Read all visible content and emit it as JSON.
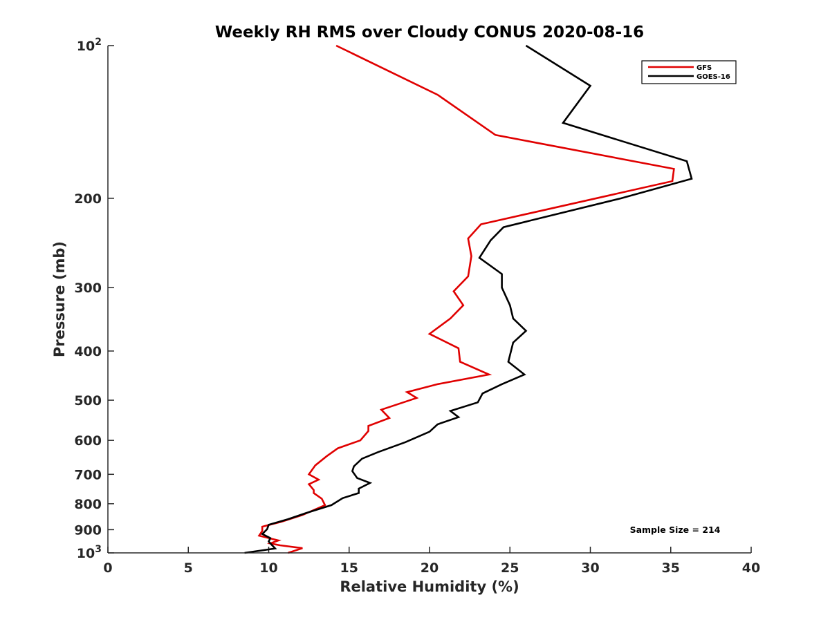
{
  "chart_data": {
    "type": "line",
    "title": "Weekly RH RMS over Cloudy CONUS 2020-08-16",
    "xlabel": "Relative Humidity (%)",
    "ylabel": "Pressure (mb)",
    "xlim": [
      0,
      40
    ],
    "ylim": [
      1000,
      100
    ],
    "y_scale": "log",
    "y_reversed": true,
    "xticks": [
      0,
      5,
      10,
      15,
      20,
      25,
      30,
      35,
      40
    ],
    "xtick_labels": [
      "0",
      "5",
      "10",
      "15",
      "20",
      "25",
      "30",
      "35",
      "40"
    ],
    "yticks": [
      {
        "value": 100,
        "base": "10",
        "exp": "2"
      },
      {
        "value": 200,
        "label": "200"
      },
      {
        "value": 300,
        "label": "300"
      },
      {
        "value": 400,
        "label": "400"
      },
      {
        "value": 500,
        "label": "500"
      },
      {
        "value": 600,
        "label": "600"
      },
      {
        "value": 700,
        "label": "700"
      },
      {
        "value": 800,
        "label": "800"
      },
      {
        "value": 900,
        "label": "900"
      },
      {
        "value": 1000,
        "base": "10",
        "exp": "3"
      }
    ],
    "grid": false,
    "legend_position": "top-right",
    "series": [
      {
        "name": "GFS",
        "color": "#e00000",
        "points": [
          [
            14.2,
            100
          ],
          [
            20.5,
            125
          ],
          [
            24.1,
            150
          ],
          [
            35.2,
            175
          ],
          [
            35.1,
            185
          ],
          [
            23.2,
            225
          ],
          [
            22.4,
            240
          ],
          [
            22.6,
            260
          ],
          [
            22.4,
            285
          ],
          [
            21.5,
            305
          ],
          [
            22.1,
            325
          ],
          [
            21.3,
            345
          ],
          [
            20.0,
            370
          ],
          [
            21.8,
            395
          ],
          [
            21.9,
            420
          ],
          [
            23.7,
            445
          ],
          [
            20.5,
            465
          ],
          [
            18.6,
            482
          ],
          [
            19.2,
            495
          ],
          [
            17.0,
            522
          ],
          [
            17.5,
            542
          ],
          [
            16.2,
            562
          ],
          [
            16.2,
            575
          ],
          [
            15.7,
            600
          ],
          [
            14.3,
            622
          ],
          [
            13.6,
            645
          ],
          [
            12.9,
            672
          ],
          [
            12.5,
            700
          ],
          [
            13.1,
            717
          ],
          [
            12.5,
            732
          ],
          [
            12.8,
            752
          ],
          [
            12.8,
            762
          ],
          [
            13.3,
            782
          ],
          [
            13.5,
            805
          ],
          [
            12.1,
            842
          ],
          [
            10.8,
            868
          ],
          [
            9.6,
            888
          ],
          [
            9.6,
            905
          ],
          [
            9.4,
            925
          ],
          [
            10.6,
            945
          ],
          [
            10.1,
            958
          ],
          [
            10.7,
            966
          ],
          [
            12.1,
            979
          ],
          [
            11.2,
            1000
          ]
        ]
      },
      {
        "name": "GOES-16",
        "color": "#000000",
        "points": [
          [
            26.0,
            100
          ],
          [
            30.0,
            120
          ],
          [
            28.3,
            142
          ],
          [
            36.0,
            169
          ],
          [
            36.3,
            183
          ],
          [
            31.9,
            200
          ],
          [
            24.6,
            228
          ],
          [
            23.8,
            242
          ],
          [
            23.1,
            262
          ],
          [
            24.5,
            282
          ],
          [
            24.5,
            300
          ],
          [
            25.0,
            325
          ],
          [
            25.2,
            345
          ],
          [
            26.0,
            365
          ],
          [
            25.2,
            385
          ],
          [
            24.9,
            420
          ],
          [
            25.9,
            445
          ],
          [
            24.5,
            465
          ],
          [
            23.3,
            485
          ],
          [
            23.0,
            505
          ],
          [
            21.3,
            525
          ],
          [
            21.8,
            540
          ],
          [
            20.5,
            558
          ],
          [
            20.0,
            577
          ],
          [
            18.5,
            605
          ],
          [
            16.8,
            633
          ],
          [
            15.8,
            652
          ],
          [
            15.3,
            675
          ],
          [
            15.2,
            690
          ],
          [
            15.5,
            712
          ],
          [
            16.3,
            728
          ],
          [
            15.6,
            747
          ],
          [
            15.6,
            762
          ],
          [
            14.6,
            780
          ],
          [
            13.9,
            805
          ],
          [
            12.3,
            835
          ],
          [
            11.2,
            858
          ],
          [
            10.0,
            880
          ],
          [
            9.9,
            898
          ],
          [
            9.6,
            918
          ],
          [
            10.1,
            935
          ],
          [
            10.0,
            950
          ],
          [
            10.2,
            965
          ],
          [
            10.4,
            980
          ],
          [
            8.5,
            1000
          ]
        ]
      }
    ],
    "annotation": "Sample Size = 214"
  }
}
